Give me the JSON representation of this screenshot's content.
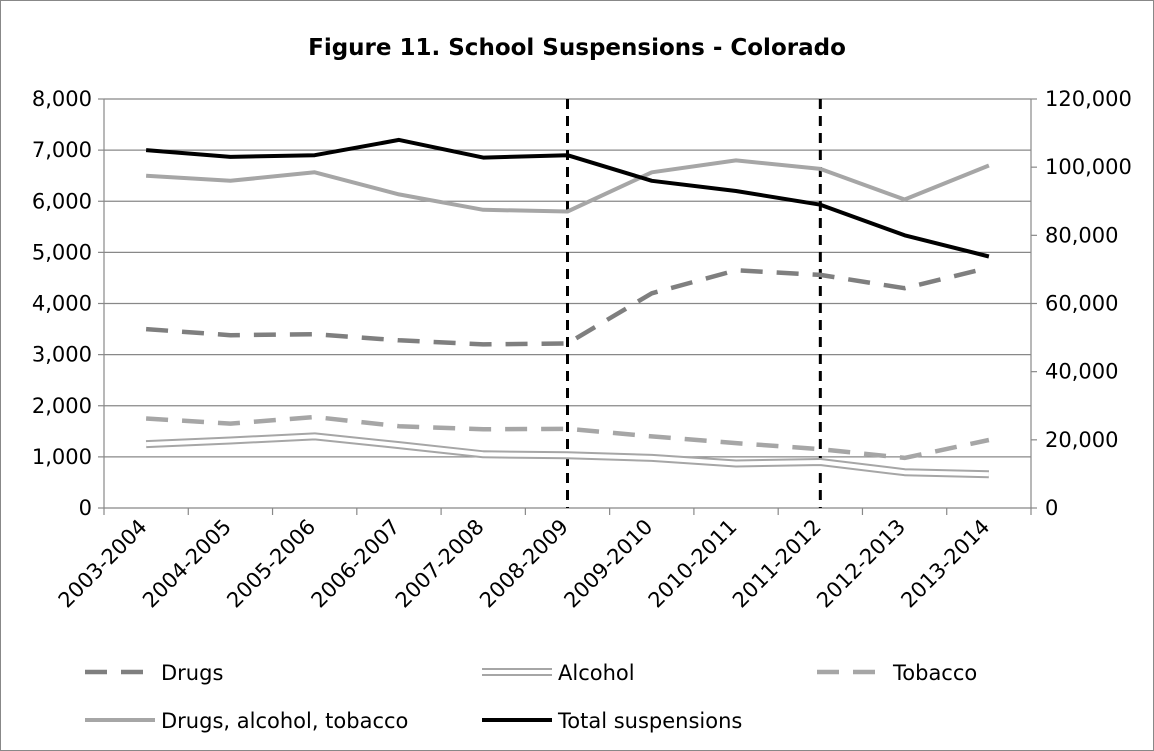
{
  "chart_data": {
    "type": "line",
    "title": "Figure 11. School Suspensions - Colorado",
    "categories": [
      "2003-2004",
      "2004-2005",
      "2005-2006",
      "2006-2007",
      "2007-2008",
      "2008-2009",
      "2009-2010",
      "2010-2011",
      "2011-2012",
      "2012-2013",
      "2013-2014"
    ],
    "y_left": {
      "min": 0,
      "max": 8000,
      "ticks": [
        "0",
        "1,000",
        "2,000",
        "3,000",
        "4,000",
        "5,000",
        "6,000",
        "7,000",
        "8,000"
      ]
    },
    "y_right": {
      "min": 0,
      "max": 120000,
      "ticks": [
        "0",
        "20,000",
        "40,000",
        "60,000",
        "80,000",
        "100,000",
        "120,000"
      ]
    },
    "grid": true,
    "legend_position": "bottom",
    "vertical_markers": [
      "2008-2009",
      "2011-2012"
    ],
    "series": [
      {
        "name": "Drugs",
        "axis": "left",
        "style": "dashed",
        "color": "#7f7f7f",
        "values": [
          3500,
          3380,
          3400,
          3280,
          3200,
          3220,
          4200,
          4650,
          4560,
          4300,
          4700
        ]
      },
      {
        "name": "Alcohol",
        "axis": "left",
        "style": "double",
        "color": "#a6a6a6",
        "values": [
          1250,
          1320,
          1400,
          1230,
          1050,
          1030,
          980,
          870,
          900,
          700,
          660
        ]
      },
      {
        "name": "Tobacco",
        "axis": "left",
        "style": "dashed",
        "color": "#a6a6a6",
        "values": [
          1750,
          1650,
          1780,
          1600,
          1540,
          1550,
          1400,
          1270,
          1150,
          980,
          1330
        ]
      },
      {
        "name": "Drugs, alcohol, tobacco",
        "axis": "right",
        "style": "solid",
        "color": "#a6a6a6",
        "values": [
          97500,
          96000,
          98500,
          92000,
          87500,
          87000,
          98500,
          102000,
          99500,
          90500,
          100500
        ]
      },
      {
        "name": "Total suspensions",
        "axis": "right",
        "style": "solid",
        "color": "#000000",
        "values": [
          105000,
          103000,
          103500,
          108000,
          102800,
          103500,
          96000,
          93000,
          89000,
          80000,
          73800
        ]
      }
    ]
  }
}
